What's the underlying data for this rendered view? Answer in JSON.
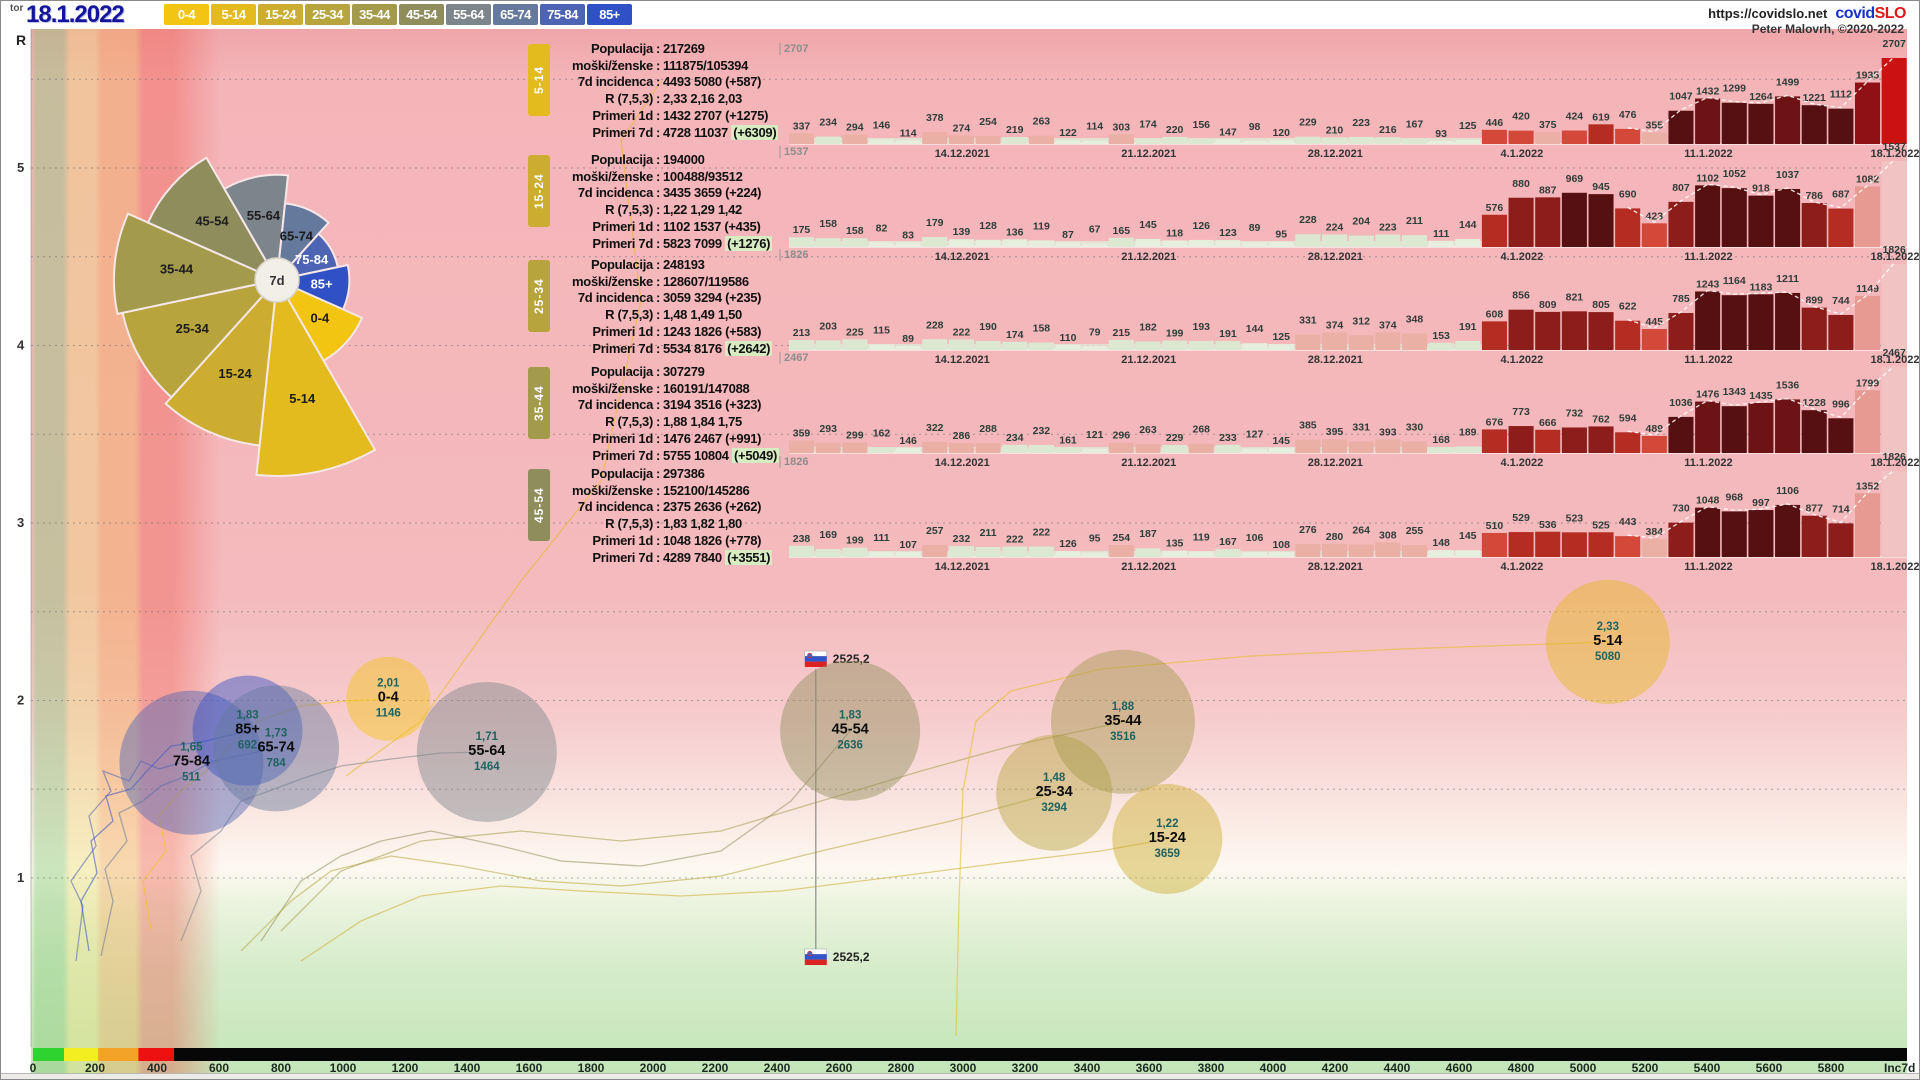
{
  "header": {
    "weekday": "tor",
    "date": "18.1.2022",
    "url": "https://covidslo.net",
    "brand_covid": "covid",
    "brand_slo": "SLO",
    "credit": "Peter Malovrh, ©2020-2022",
    "age_buttons": [
      {
        "label": "0-4",
        "color": "#f3c513"
      },
      {
        "label": "5-14",
        "color": "#e4bb1e"
      },
      {
        "label": "15-24",
        "color": "#ccad2f"
      },
      {
        "label": "25-34",
        "color": "#b8a43d"
      },
      {
        "label": "35-44",
        "color": "#a49a4b"
      },
      {
        "label": "45-54",
        "color": "#8f8d5c"
      },
      {
        "label": "55-64",
        "color": "#7c858b"
      },
      {
        "label": "65-74",
        "color": "#65799d"
      },
      {
        "label": "75-84",
        "color": "#4d63b3"
      },
      {
        "label": "85+",
        "color": "#3050c6"
      }
    ]
  },
  "age_colors": {
    "0-4": "#f3c513",
    "5-14": "#e4bb1e",
    "15-24": "#ccad2f",
    "25-34": "#b8a43d",
    "35-44": "#a49a4b",
    "45-54": "#8f8d5c",
    "55-64": "#7c858b",
    "65-74": "#65799d",
    "75-84": "#4d63b3",
    "85+": "#3050c6"
  },
  "panels": [
    {
      "age": "5-14",
      "rows": [
        [
          "Populacija",
          "217269",
          ""
        ],
        [
          "moški/ženske",
          "111875/105394",
          ""
        ],
        [
          "7d incidenca",
          "4493 5080",
          "(+587)"
        ],
        [
          "R (7,5,3)",
          "2,33 2,16 2,03",
          ""
        ],
        [
          "Primeri 1d",
          "1432 2707",
          "(+1275)"
        ],
        [
          "Primeri 7d",
          "4728 11037",
          "(+6309)"
        ]
      ]
    },
    {
      "age": "15-24",
      "rows": [
        [
          "Populacija",
          "194000",
          ""
        ],
        [
          "moški/ženske",
          "100488/93512",
          ""
        ],
        [
          "7d incidenca",
          "3435 3659",
          "(+224)"
        ],
        [
          "R (7,5,3)",
          "1,22 1,29 1,42",
          ""
        ],
        [
          "Primeri 1d",
          "1102 1537",
          "(+435)"
        ],
        [
          "Primeri 7d",
          "5823 7099",
          "(+1276)"
        ]
      ]
    },
    {
      "age": "25-34",
      "rows": [
        [
          "Populacija",
          "248193",
          ""
        ],
        [
          "moški/ženske",
          "128607/119586",
          ""
        ],
        [
          "7d incidenca",
          "3059 3294",
          "(+235)"
        ],
        [
          "R (7,5,3)",
          "1,48 1,49 1,50",
          ""
        ],
        [
          "Primeri 1d",
          "1243 1826",
          "(+583)"
        ],
        [
          "Primeri 7d",
          "5534 8176",
          "(+2642)"
        ]
      ]
    },
    {
      "age": "35-44",
      "rows": [
        [
          "Populacija",
          "307279",
          ""
        ],
        [
          "moški/ženske",
          "160191/147088",
          ""
        ],
        [
          "7d incidenca",
          "3194 3516",
          "(+323)"
        ],
        [
          "R (7,5,3)",
          "1,88 1,84 1,75",
          ""
        ],
        [
          "Primeri 1d",
          "1476 2467",
          "(+991)"
        ],
        [
          "Primeri 7d",
          "5755 10804",
          "(+5049)"
        ]
      ]
    },
    {
      "age": "45-54",
      "rows": [
        [
          "Populacija",
          "297386",
          ""
        ],
        [
          "moški/ženske",
          "152100/145286",
          ""
        ],
        [
          "7d incidenca",
          "2375 2636",
          "(+262)"
        ],
        [
          "R (7,5,3)",
          "1,83 1,82 1,80",
          ""
        ],
        [
          "Primeri 1d",
          "1048 1826",
          "(+778)"
        ],
        [
          "Primeri 7d",
          "4289 7840",
          "(+3551)"
        ]
      ]
    }
  ],
  "chart_data": {
    "daily_cases_by_age": {
      "type": "bar",
      "week_labels": [
        "14.12.2021",
        "21.12.2021",
        "28.12.2021",
        "4.1.2022",
        "11.1.2022",
        "18.1.2022"
      ],
      "rows": [
        {
          "age": "5-14",
          "max": 2707,
          "values": [
            337,
            234,
            294,
            146,
            114,
            378,
            274,
            254,
            219,
            263,
            122,
            114,
            303,
            174,
            220,
            156,
            147,
            98,
            120,
            229,
            210,
            223,
            216,
            167,
            93,
            125,
            446,
            420,
            375,
            424,
            619,
            476,
            355,
            1047,
            1432,
            1299,
            1264,
            1499,
            1221,
            1112,
            1935,
            2707
          ]
        },
        {
          "age": "15-24",
          "max": 1537,
          "values": [
            175,
            158,
            158,
            82,
            83,
            179,
            139,
            128,
            136,
            119,
            87,
            67,
            165,
            145,
            118,
            126,
            123,
            89,
            95,
            228,
            224,
            204,
            223,
            211,
            111,
            144,
            576,
            880,
            887,
            969,
            945,
            690,
            423,
            807,
            1102,
            1052,
            918,
            1037,
            786,
            687,
            1082,
            1537
          ]
        },
        {
          "age": "25-34",
          "max": 1826,
          "values": [
            213,
            203,
            225,
            115,
            89,
            228,
            222,
            190,
            174,
            158,
            110,
            79,
            215,
            182,
            199,
            193,
            191,
            144,
            125,
            331,
            374,
            312,
            374,
            348,
            153,
            191,
            608,
            856,
            809,
            821,
            805,
            622,
            445,
            785,
            1243,
            1164,
            1183,
            1211,
            899,
            744,
            1149,
            1826
          ]
        },
        {
          "age": "35-44",
          "max": 2467,
          "values": [
            359,
            293,
            299,
            162,
            146,
            322,
            286,
            288,
            234,
            232,
            161,
            121,
            296,
            263,
            229,
            268,
            233,
            127,
            145,
            385,
            395,
            331,
            393,
            330,
            168,
            189,
            676,
            773,
            666,
            732,
            762,
            594,
            489,
            1036,
            1476,
            1343,
            1435,
            1536,
            1228,
            996,
            1799,
            2467
          ]
        },
        {
          "age": "45-54",
          "max": 1826,
          "values": [
            238,
            169,
            199,
            111,
            107,
            257,
            232,
            211,
            222,
            222,
            126,
            95,
            254,
            187,
            135,
            119,
            167,
            106,
            108,
            276,
            280,
            264,
            308,
            255,
            148,
            145,
            510,
            529,
            536,
            523,
            525,
            443,
            384,
            730,
            1048,
            968,
            997,
            1106,
            877,
            714,
            1352,
            1826
          ]
        }
      ]
    },
    "rose_7d_incidence": {
      "type": "pie",
      "center_label": "7d",
      "slices": [
        {
          "age": "55-64",
          "value": 1464
        },
        {
          "age": "65-74",
          "value": 784
        },
        {
          "age": "75-84",
          "value": 511
        },
        {
          "age": "85+",
          "value": 692
        },
        {
          "age": "0-4",
          "value": 1146
        },
        {
          "age": "5-14",
          "value": 5080
        },
        {
          "age": "15-24",
          "value": 3659
        },
        {
          "age": "25-34",
          "value": 3294
        },
        {
          "age": "35-44",
          "value": 3516
        },
        {
          "age": "45-54",
          "value": 2636
        }
      ]
    },
    "r_vs_incidence": {
      "type": "scatter",
      "x_label": "Inc7d",
      "y_label": "R",
      "x_min": 0,
      "x_max": 5800,
      "x_step": 200,
      "y_ticks": [
        1,
        2,
        3,
        4,
        5
      ],
      "points": [
        {
          "age": "75-84",
          "r_label": "1,65",
          "inc_label": "511",
          "R": 1.65,
          "inc": 511,
          "radius": 72
        },
        {
          "age": "85+",
          "r_label": "1,83",
          "inc_label": "692",
          "R": 1.83,
          "inc": 692,
          "radius": 55
        },
        {
          "age": "65-74",
          "r_label": "1,73",
          "inc_label": "784",
          "R": 1.73,
          "inc": 784,
          "radius": 63
        },
        {
          "age": "0-4",
          "r_label": "2,01",
          "inc_label": "1146",
          "R": 2.01,
          "inc": 1146,
          "radius": 42
        },
        {
          "age": "55-64",
          "r_label": "1,71",
          "inc_label": "1464",
          "R": 1.71,
          "inc": 1464,
          "radius": 70
        },
        {
          "age": "45-54",
          "r_label": "1,83",
          "inc_label": "2636",
          "R": 1.83,
          "inc": 2636,
          "radius": 70
        },
        {
          "age": "25-34",
          "r_label": "1,48",
          "inc_label": "3294",
          "R": 1.48,
          "inc": 3294,
          "radius": 58
        },
        {
          "age": "35-44",
          "r_label": "1,88",
          "inc_label": "3516",
          "R": 1.88,
          "inc": 3516,
          "radius": 72
        },
        {
          "age": "15-24",
          "r_label": "1,22",
          "inc_label": "3659",
          "R": 1.22,
          "inc": 3659,
          "radius": 55
        },
        {
          "age": "5-14",
          "r_label": "2,33",
          "inc_label": "5080",
          "R": 2.33,
          "inc": 5080,
          "radius": 62
        }
      ],
      "slovenia_marker": {
        "label": "2525,2",
        "inc": 2525.2
      }
    },
    "incidence_colorbar": [
      {
        "color": "#2fd32f",
        "to": 100
      },
      {
        "color": "#f2ee1f",
        "to": 210
      },
      {
        "color": "#f4a329",
        "to": 340
      },
      {
        "color": "#ee1111",
        "to": 455
      },
      {
        "color": "#070707",
        "to": 5800
      }
    ]
  }
}
